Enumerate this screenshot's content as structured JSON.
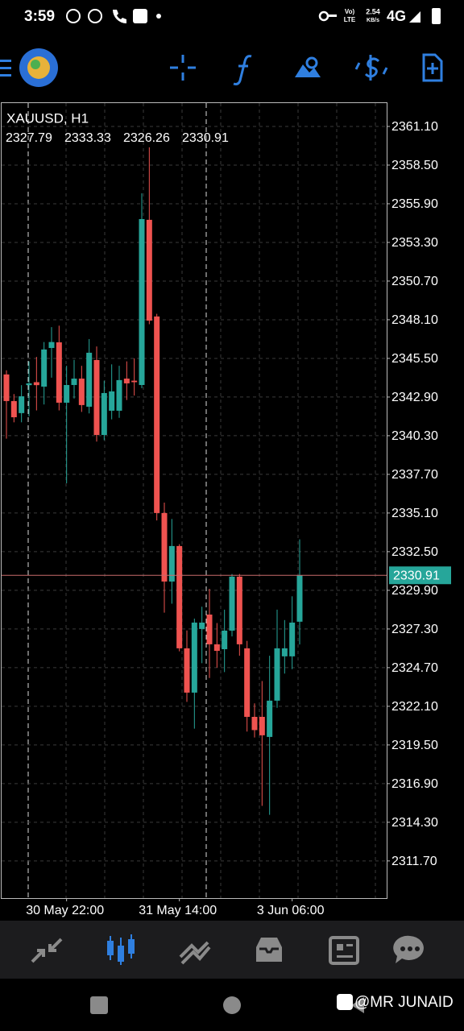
{
  "status_bar": {
    "time": "3:59",
    "volte": "Vo)",
    "lte": "LTE",
    "speed": "2.54",
    "speed_unit": "KB/s",
    "network": "4G"
  },
  "watermark": "@MR JUNAID",
  "chart_data": {
    "type": "candlestick",
    "title": "XAUUSD, H1",
    "x": [
      null,
      null,
      null,
      null,
      null,
      null,
      null,
      null,
      "30 May 22:00",
      null,
      null,
      null,
      null,
      null,
      null,
      null,
      null,
      null,
      null,
      null,
      null,
      null,
      null,
      "31 May 14:00",
      null,
      null,
      null,
      null,
      null,
      null,
      null,
      null,
      null,
      null,
      null,
      null,
      null,
      null,
      "3 Jun 06:00",
      null
    ],
    "open": [
      2344.42,
      2342.63,
      2341.82,
      2343.7,
      2343.9,
      2343.6,
      2346.2,
      2346.58,
      2342.52,
      2343.71,
      2344.14,
      2342.25,
      2345.39,
      2340.35,
      2341.98,
      2341.98,
      2344.14,
      2344.0,
      2343.71,
      2354.82,
      2348.32,
      2335.1,
      2330.49,
      2332.88,
      2326.0,
      2323.02,
      2327.3,
      2328.27,
      2326.27,
      2325.94,
      2327.19,
      2330.82,
      2326.0,
      2321.39,
      2321.39,
      2320.04,
      2322.48,
      2325.46,
      2325.46,
      2327.79
    ],
    "high": [
      2344.7,
      2343.1,
      2343.7,
      2345.3,
      2345.6,
      2346.6,
      2347.6,
      2347.7,
      2345.0,
      2345.4,
      2345.0,
      2346.8,
      2346.3,
      2344.0,
      2345.1,
      2345.0,
      2345.3,
      2345.5,
      2356.6,
      2359.7,
      2348.5,
      2335.8,
      2334.7,
      2333.0,
      2327.2,
      2328.0,
      2328.8,
      2330.0,
      2327.7,
      2328.6,
      2331.0,
      2331.0,
      2326.5,
      2322.3,
      2323.8,
      2325.5,
      2328.6,
      2327.9,
      2329.5,
      2333.33
    ],
    "low": [
      2340.1,
      2341.2,
      2341.2,
      2341.6,
      2342.0,
      2342.4,
      2344.2,
      2342.0,
      2337.1,
      2342.8,
      2341.9,
      2341.8,
      2339.9,
      2340.0,
      2341.4,
      2341.5,
      2342.7,
      2343.0,
      2343.5,
      2347.8,
      2334.6,
      2328.4,
      2329.0,
      2325.8,
      2322.4,
      2320.6,
      2325.0,
      2324.0,
      2324.7,
      2324.4,
      2326.8,
      2325.5,
      2320.4,
      2320.0,
      2315.4,
      2314.8,
      2322.0,
      2324.3,
      2324.6,
      2326.26
    ],
    "close": [
      2342.63,
      2341.54,
      2342.95,
      2343.82,
      2343.7,
      2346.1,
      2346.6,
      2342.52,
      2343.71,
      2344.14,
      2342.36,
      2345.88,
      2340.35,
      2343.17,
      2343.28,
      2344.04,
      2343.82,
      2343.9,
      2354.87,
      2348.04,
      2335.1,
      2330.49,
      2332.88,
      2326.0,
      2323.02,
      2327.73,
      2327.73,
      2326.27,
      2325.83,
      2327.19,
      2330.82,
      2326.27,
      2321.39,
      2320.5,
      2320.15,
      2322.48,
      2326.0,
      2326.0,
      2327.73,
      2330.91
    ],
    "up_color": "#26a69a",
    "down_color": "#ef5350",
    "ylim": [
      2309.2,
      2362.67
    ],
    "yticks": [
      {
        "value": 2361.1,
        "label": "2361.10"
      },
      {
        "value": 2358.5,
        "label": "2358.50"
      },
      {
        "value": 2355.9,
        "label": "2355.90"
      },
      {
        "value": 2353.3,
        "label": "2353.30"
      },
      {
        "value": 2350.7,
        "label": "2350.70"
      },
      {
        "value": 2348.1,
        "label": "2348.10"
      },
      {
        "value": 2345.5,
        "label": "2345.50"
      },
      {
        "value": 2342.9,
        "label": "2342.90"
      },
      {
        "value": 2340.3,
        "label": "2340.30"
      },
      {
        "value": 2337.7,
        "label": "2337.70"
      },
      {
        "value": 2335.1,
        "label": "2335.10"
      },
      {
        "value": 2332.5,
        "label": "2332.50"
      },
      {
        "value": 2329.9,
        "label": "2329.90"
      },
      {
        "value": 2327.3,
        "label": "2327.30"
      },
      {
        "value": 2324.7,
        "label": "2324.70"
      },
      {
        "value": 2322.1,
        "label": "2322.10"
      },
      {
        "value": 2319.5,
        "label": "2319.50"
      },
      {
        "value": 2316.9,
        "label": "2316.90"
      },
      {
        "value": 2314.3,
        "label": "2314.30"
      },
      {
        "value": 2311.7,
        "label": "2311.70"
      }
    ],
    "grid": true
  }
}
